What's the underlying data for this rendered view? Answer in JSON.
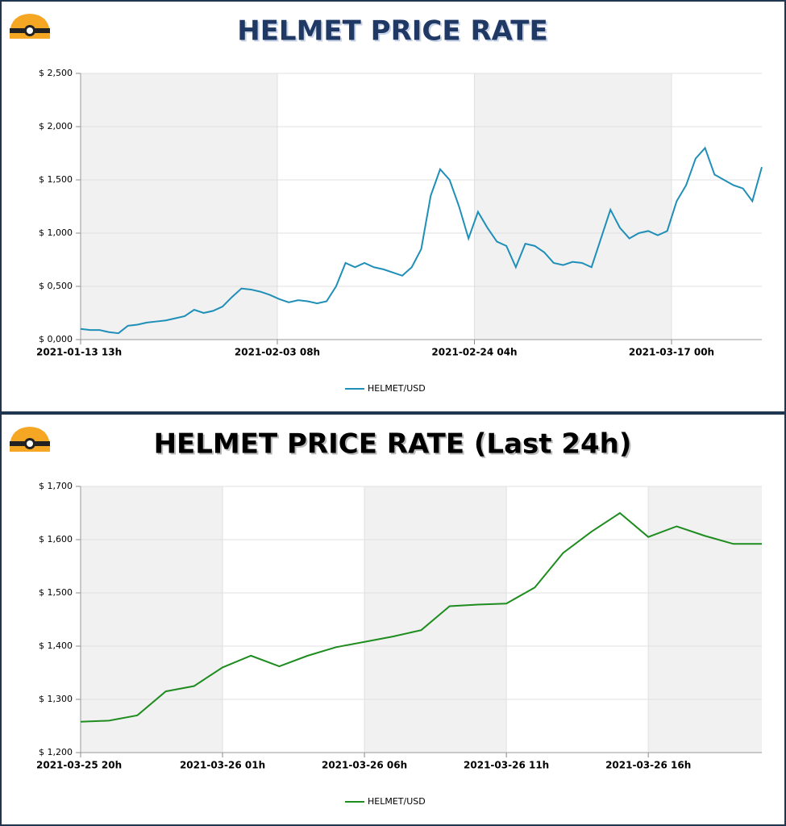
{
  "chart_data": [
    {
      "type": "line",
      "title": "HELMET PRICE RATE",
      "x": [
        "2021-01-13 13h",
        "2021-01-14 13h",
        "2021-01-15 13h",
        "2021-01-16 13h",
        "2021-01-17 13h",
        "2021-01-18 13h",
        "2021-01-19 13h",
        "2021-01-20 13h",
        "2021-01-21 13h",
        "2021-01-22 13h",
        "2021-01-23 13h",
        "2021-01-24 13h",
        "2021-01-25 13h",
        "2021-01-26 13h",
        "2021-01-27 13h",
        "2021-01-28 13h",
        "2021-01-29 13h",
        "2021-01-30 13h",
        "2021-01-31 13h",
        "2021-02-01 13h",
        "2021-02-02 13h",
        "2021-02-03 13h",
        "2021-02-04 13h",
        "2021-02-05 13h",
        "2021-02-06 13h",
        "2021-02-07 13h",
        "2021-02-08 13h",
        "2021-02-09 13h",
        "2021-02-10 13h",
        "2021-02-11 13h",
        "2021-02-12 13h",
        "2021-02-13 13h",
        "2021-02-14 13h",
        "2021-02-15 13h",
        "2021-02-16 13h",
        "2021-02-17 13h",
        "2021-02-18 13h",
        "2021-02-19 13h",
        "2021-02-20 13h",
        "2021-02-21 13h",
        "2021-02-22 13h",
        "2021-02-23 13h",
        "2021-02-24 13h",
        "2021-02-25 13h",
        "2021-02-26 13h",
        "2021-02-27 13h",
        "2021-02-28 13h",
        "2021-03-01 13h",
        "2021-03-02 13h",
        "2021-03-03 13h",
        "2021-03-04 13h",
        "2021-03-05 13h",
        "2021-03-06 13h",
        "2021-03-07 13h",
        "2021-03-08 13h",
        "2021-03-09 13h",
        "2021-03-10 13h",
        "2021-03-11 13h",
        "2021-03-12 13h",
        "2021-03-13 13h",
        "2021-03-14 13h",
        "2021-03-15 13h",
        "2021-03-16 13h",
        "2021-03-17 13h",
        "2021-03-18 13h",
        "2021-03-19 13h",
        "2021-03-20 13h",
        "2021-03-21 13h",
        "2021-03-22 13h",
        "2021-03-23 13h",
        "2021-03-24 13h",
        "2021-03-25 13h",
        "2021-03-26 13h"
      ],
      "series": [
        {
          "name": "HELMET/USD",
          "color": "#1f8fb8",
          "values": [
            0.1,
            0.09,
            0.09,
            0.07,
            0.06,
            0.13,
            0.14,
            0.16,
            0.17,
            0.18,
            0.2,
            0.22,
            0.28,
            0.25,
            0.27,
            0.31,
            0.4,
            0.48,
            0.47,
            0.45,
            0.42,
            0.38,
            0.35,
            0.37,
            0.36,
            0.34,
            0.36,
            0.5,
            0.72,
            0.68,
            0.72,
            0.68,
            0.66,
            0.63,
            0.6,
            0.68,
            0.85,
            1.35,
            1.6,
            1.5,
            1.25,
            0.95,
            1.2,
            1.05,
            0.92,
            0.88,
            0.68,
            0.9,
            0.88,
            0.82,
            0.72,
            0.7,
            0.73,
            0.72,
            0.68,
            0.95,
            1.22,
            1.05,
            0.95,
            1.0,
            1.02,
            0.98,
            1.02,
            1.3,
            1.45,
            1.7,
            1.8,
            1.55,
            1.5,
            1.45,
            1.42,
            1.3,
            1.62
          ]
        }
      ],
      "xlim": [
        "2021-01-13 13h",
        "2021-03-26 13h"
      ],
      "xticks": [
        "2021-01-13 13h",
        "2021-02-03 08h",
        "2021-02-24 04h",
        "2021-03-17 00h"
      ],
      "ylim": [
        0,
        2.5
      ],
      "yticks": [
        {
          "value": 0,
          "label": "$ 0,000"
        },
        {
          "value": 0.5,
          "label": "$ 0,500"
        },
        {
          "value": 1,
          "label": "$ 1,000"
        },
        {
          "value": 1.5,
          "label": "$ 1,500"
        },
        {
          "value": 2,
          "label": "$ 2,000"
        },
        {
          "value": 2.5,
          "label": "$ 2,500"
        }
      ],
      "grid": true
    },
    {
      "type": "line",
      "title": "HELMET PRICE RATE (Last 24h)",
      "x": [
        "2021-03-25 20h",
        "2021-03-25 21h",
        "2021-03-25 22h",
        "2021-03-25 23h",
        "2021-03-26 00h",
        "2021-03-26 01h",
        "2021-03-26 02h",
        "2021-03-26 03h",
        "2021-03-26 04h",
        "2021-03-26 05h",
        "2021-03-26 06h",
        "2021-03-26 07h",
        "2021-03-26 08h",
        "2021-03-26 09h",
        "2021-03-26 10h",
        "2021-03-26 11h",
        "2021-03-26 12h",
        "2021-03-26 13h",
        "2021-03-26 14h",
        "2021-03-26 15h",
        "2021-03-26 16h",
        "2021-03-26 17h",
        "2021-03-26 18h",
        "2021-03-26 19h",
        "2021-03-26 20h"
      ],
      "series": [
        {
          "name": "HELMET/USD",
          "color": "#1e8c1e",
          "values": [
            1.258,
            1.26,
            1.27,
            1.315,
            1.325,
            1.36,
            1.382,
            1.362,
            1.382,
            1.398,
            1.408,
            1.418,
            1.43,
            1.475,
            1.478,
            1.48,
            1.51,
            1.575,
            1.615,
            1.65,
            1.605,
            1.625,
            1.607,
            1.592,
            1.592
          ]
        }
      ],
      "xlim": [
        "2021-03-25 20h",
        "2021-03-26 20h"
      ],
      "xticks": [
        "2021-03-25 20h",
        "2021-03-26 01h",
        "2021-03-26 06h",
        "2021-03-26 11h",
        "2021-03-26 16h"
      ],
      "ylim": [
        1.2,
        1.7
      ],
      "yticks": [
        {
          "value": 1.2,
          "label": "$ 1,200"
        },
        {
          "value": 1.3,
          "label": "$ 1,300"
        },
        {
          "value": 1.4,
          "label": "$ 1,400"
        },
        {
          "value": 1.5,
          "label": "$ 1,500"
        },
        {
          "value": 1.6,
          "label": "$ 1,600"
        },
        {
          "value": 1.7,
          "label": "$ 1,700"
        }
      ],
      "grid": true
    }
  ]
}
